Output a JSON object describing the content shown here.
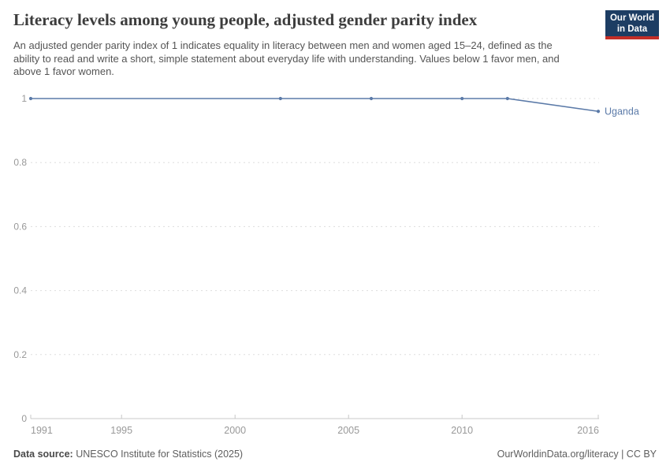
{
  "header": {
    "title": "Literacy levels among young people, adjusted gender parity index",
    "subtitle": "An adjusted gender parity index of 1 indicates equality in literacy between men and women aged 15–24, defined as the ability to read and write a short, simple statement about everyday life with understanding. Values below 1 favor men, and above 1 favor women.",
    "logo": {
      "line1": "Our World",
      "line2": "in Data"
    }
  },
  "chart_data": {
    "type": "line",
    "title": "Literacy levels among young people, adjusted gender parity index",
    "xlabel": "",
    "ylabel": "",
    "xlim": [
      1991,
      2016
    ],
    "ylim": [
      0,
      1
    ],
    "x_ticks": [
      1991,
      1995,
      2000,
      2005,
      2010,
      2016
    ],
    "y_ticks": [
      0,
      0.2,
      0.4,
      0.6,
      0.8,
      1
    ],
    "grid": "horizontal-dashed",
    "legend_position": "end-of-line-label",
    "series": [
      {
        "name": "Uganda",
        "x": [
          1991,
          2002,
          2006,
          2010,
          2012,
          2016
        ],
        "values": [
          1,
          1,
          1,
          1,
          1,
          0.96
        ]
      }
    ]
  },
  "footer": {
    "source_label": "Data source:",
    "source_text": " UNESCO Institute for Statistics (2025)",
    "right_text": "OurWorldinData.org/literacy | CC BY"
  },
  "colors": {
    "line": "#5b7aa8",
    "series_label": "#5b7aa8",
    "grid": "#dddddd",
    "axis": "#c8c8c8",
    "tick_label": "#999999",
    "title": "#3d3d3d",
    "subtitle": "#555555",
    "logo_bg": "#1d3d63",
    "logo_red": "#c32e27"
  }
}
